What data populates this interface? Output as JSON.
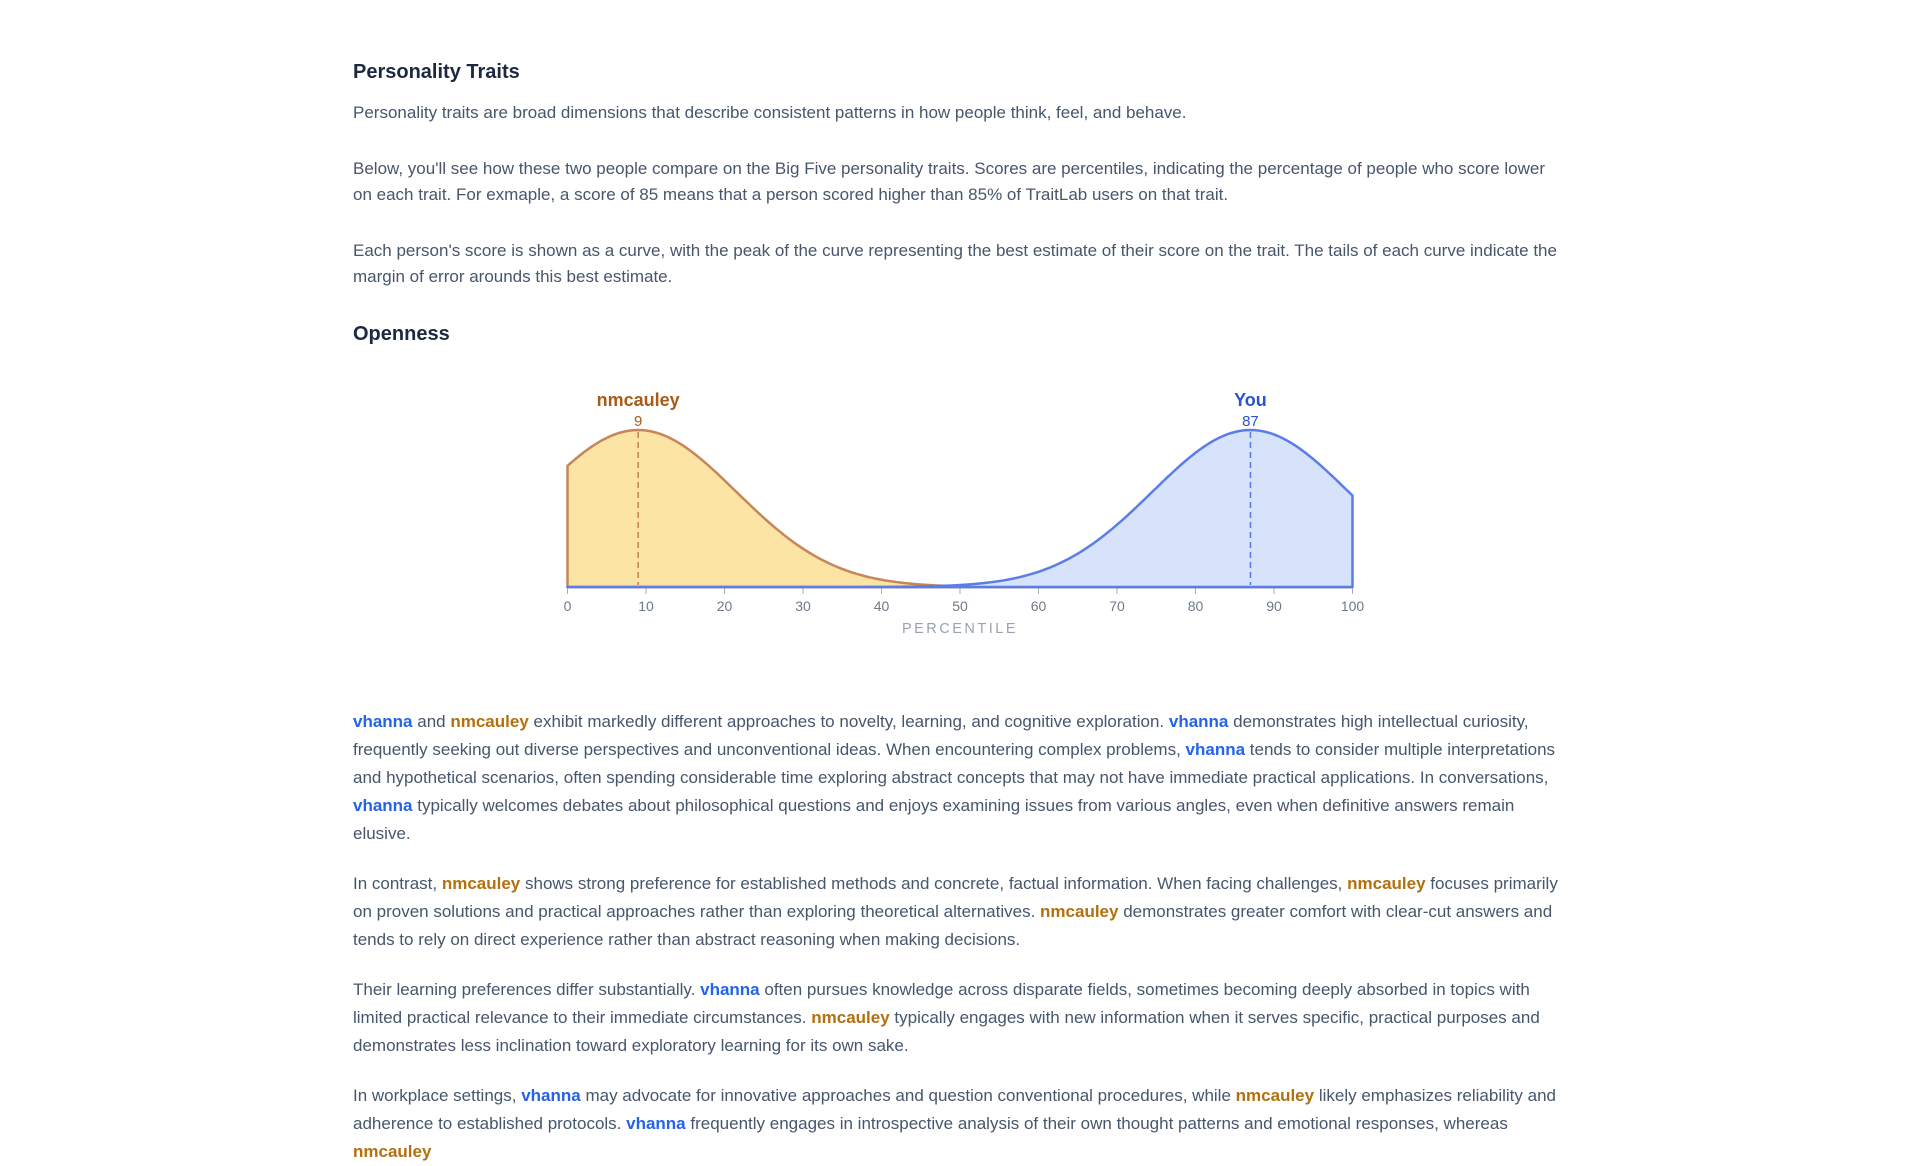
{
  "page": {
    "title": "Personality Traits",
    "intro": [
      "Personality traits are broad dimensions that describe consistent patterns in how people think, feel, and behave.",
      "Below, you'll see how these two people compare on the Big Five personality traits. Scores are percentiles, indicating the percentage of people who score lower on each trait. For exmaple, a score of 85 means that a person scored higher than 85% of TraitLab users on that trait.",
      "Each person's score is shown as a curve, with the peak of the curve representing the best estimate of their score on the trait. The tails of each curve indicate the margin of error arounds this best estimate."
    ],
    "section_title": "Openness"
  },
  "chart_data": {
    "type": "area",
    "title": "Openness",
    "xlabel": "PERCENTILE",
    "xlim": [
      0,
      100
    ],
    "x_ticks": [
      0,
      10,
      20,
      30,
      40,
      50,
      60,
      70,
      80,
      90,
      100
    ],
    "grid": false,
    "legend_position": "labels-above-peaks",
    "axis_color": "#a6adb8",
    "tick_label_color": "#6e7a8a",
    "xlabel_color": "#99a2ad",
    "series": [
      {
        "name": "nmcauley",
        "score": 9,
        "sd": 12.5,
        "curve": "normal density truncated to [0,100], peak at score",
        "stroke": "#c7855a",
        "fill": "#fbe4a4",
        "label_color": "#a95a17"
      },
      {
        "name": "You",
        "score": 87,
        "sd": 12.5,
        "curve": "normal density truncated to [0,100], peak at score",
        "stroke": "#5b7de8",
        "fill": "#d7e3fb",
        "label_color": "#2b52cf"
      }
    ]
  },
  "comparison": {
    "name_colors": {
      "blue": "#2563eb",
      "orange": "#b3700e"
    },
    "paragraphs": [
      [
        {
          "t": "vhanna",
          "c": "blue"
        },
        {
          "t": " and ",
          "c": "plain"
        },
        {
          "t": "nmcauley",
          "c": "orange"
        },
        {
          "t": " exhibit markedly different approaches to novelty, learning, and cognitive exploration. ",
          "c": "plain"
        },
        {
          "t": "vhanna",
          "c": "blue"
        },
        {
          "t": " demonstrates high intellectual curiosity, frequently seeking out diverse perspectives and unconventional ideas. When encountering complex problems, ",
          "c": "plain"
        },
        {
          "t": "vhanna",
          "c": "blue"
        },
        {
          "t": " tends to consider multiple interpretations and hypothetical scenarios, often spending considerable time exploring abstract concepts that may not have immediate practical applications. In conversations, ",
          "c": "plain"
        },
        {
          "t": "vhanna",
          "c": "blue"
        },
        {
          "t": " typically welcomes debates about philosophical questions and enjoys examining issues from various angles, even when definitive answers remain elusive.",
          "c": "plain"
        }
      ],
      [
        {
          "t": "In contrast, ",
          "c": "plain"
        },
        {
          "t": "nmcauley",
          "c": "orange"
        },
        {
          "t": " shows strong preference for established methods and concrete, factual information. When facing challenges, ",
          "c": "plain"
        },
        {
          "t": "nmcauley",
          "c": "orange"
        },
        {
          "t": " focuses primarily on proven solutions and practical approaches rather than exploring theoretical alternatives. ",
          "c": "plain"
        },
        {
          "t": "nmcauley",
          "c": "orange"
        },
        {
          "t": " demonstrates greater comfort with clear-cut answers and tends to rely on direct experience rather than abstract reasoning when making decisions.",
          "c": "plain"
        }
      ],
      [
        {
          "t": "Their learning preferences differ substantially. ",
          "c": "plain"
        },
        {
          "t": "vhanna",
          "c": "blue"
        },
        {
          "t": " often pursues knowledge across disparate fields, sometimes becoming deeply absorbed in topics with limited practical relevance to their immediate circumstances. ",
          "c": "plain"
        },
        {
          "t": "nmcauley",
          "c": "orange"
        },
        {
          "t": " typically engages with new information when it serves specific, practical purposes and demonstrates less inclination toward exploratory learning for its own sake.",
          "c": "plain"
        }
      ],
      [
        {
          "t": "In workplace settings, ",
          "c": "plain"
        },
        {
          "t": "vhanna",
          "c": "blue"
        },
        {
          "t": " may advocate for innovative approaches and question conventional procedures, while ",
          "c": "plain"
        },
        {
          "t": "nmcauley",
          "c": "orange"
        },
        {
          "t": " likely emphasizes reliability and adherence to established protocols. ",
          "c": "plain"
        },
        {
          "t": "vhanna",
          "c": "blue"
        },
        {
          "t": " frequently engages in introspective analysis of their own thought patterns and emotional responses, whereas ",
          "c": "plain"
        },
        {
          "t": "nmcauley",
          "c": "orange"
        }
      ]
    ]
  }
}
